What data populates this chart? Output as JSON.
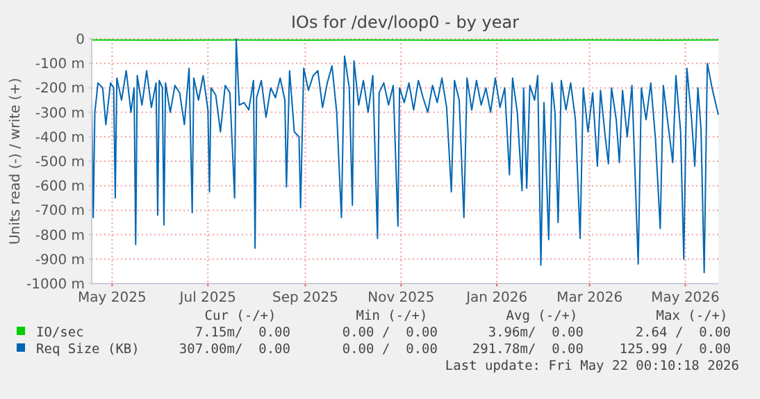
{
  "chart_data": {
    "type": "line",
    "title": "IOs for /dev/loop0 - by year",
    "ylabel": "Units read (-) / write (+)",
    "xlim": [
      "2025-04-18",
      "2026-05-22"
    ],
    "xticks": [
      {
        "value": "2025-05-01",
        "label": "May 2025"
      },
      {
        "value": "2025-07-01",
        "label": "Jul 2025"
      },
      {
        "value": "2025-09-01",
        "label": "Sep 2025"
      },
      {
        "value": "2025-11-01",
        "label": "Nov 2025"
      },
      {
        "value": "2026-01-01",
        "label": "Jan 2026"
      },
      {
        "value": "2026-03-01",
        "label": "Mar 2026"
      },
      {
        "value": "2026-05-01",
        "label": "May 2026"
      }
    ],
    "ylim": [
      -1000,
      0
    ],
    "yticks": [
      {
        "value": -1000,
        "label": "-1000 m"
      },
      {
        "value": -900,
        "label": "-900 m"
      },
      {
        "value": -800,
        "label": "-800 m"
      },
      {
        "value": -700,
        "label": "-700 m"
      },
      {
        "value": -600,
        "label": "-600 m"
      },
      {
        "value": -500,
        "label": "-500 m"
      },
      {
        "value": -400,
        "label": "-400 m"
      },
      {
        "value": -300,
        "label": "-300 m"
      },
      {
        "value": -200,
        "label": "-200 m"
      },
      {
        "value": -100,
        "label": "-100 m"
      },
      0
    ],
    "grid": true,
    "legend": "bottom",
    "series": [
      {
        "name": "IO/sec",
        "color": "#00cc00",
        "x": [
          "2025-04-18",
          "2025-06-01",
          "2025-07-15",
          "2025-09-01",
          "2025-10-15",
          "2025-12-01",
          "2026-01-15",
          "2026-03-01",
          "2026-04-15",
          "2026-05-22"
        ],
        "values": [
          -4,
          -5,
          -4,
          -5,
          -4,
          -5,
          -5,
          -4,
          -5,
          -4
        ]
      },
      {
        "name": "Req Size (KB)",
        "color": "#0066b3",
        "x": [
          "2025-04-18",
          "2025-04-19",
          "2025-04-20",
          "2025-04-22",
          "2025-04-25",
          "2025-04-27",
          "2025-04-30",
          "2025-05-02",
          "2025-05-03",
          "2025-05-04",
          "2025-05-07",
          "2025-05-10",
          "2025-05-13",
          "2025-05-15",
          "2025-05-16",
          "2025-05-17",
          "2025-05-20",
          "2025-05-23",
          "2025-05-26",
          "2025-05-29",
          "2025-05-30",
          "2025-05-31",
          "2025-06-02",
          "2025-06-03",
          "2025-06-04",
          "2025-06-07",
          "2025-06-10",
          "2025-06-13",
          "2025-06-16",
          "2025-06-19",
          "2025-06-21",
          "2025-06-22",
          "2025-06-25",
          "2025-06-28",
          "2025-07-01",
          "2025-07-02",
          "2025-07-03",
          "2025-07-06",
          "2025-07-09",
          "2025-07-12",
          "2025-07-15",
          "2025-07-18",
          "2025-07-19",
          "2025-07-21",
          "2025-07-24",
          "2025-07-27",
          "2025-07-30",
          "2025-07-31",
          "2025-08-01",
          "2025-08-04",
          "2025-08-07",
          "2025-08-10",
          "2025-08-13",
          "2025-08-16",
          "2025-08-19",
          "2025-08-20",
          "2025-08-22",
          "2025-08-25",
          "2025-08-28",
          "2025-08-29",
          "2025-08-31",
          "2025-09-03",
          "2025-09-06",
          "2025-09-09",
          "2025-09-12",
          "2025-09-15",
          "2025-09-18",
          "2025-09-21",
          "2025-09-24",
          "2025-09-26",
          "2025-09-29",
          "2025-10-01",
          "2025-10-02",
          "2025-10-05",
          "2025-10-08",
          "2025-10-11",
          "2025-10-14",
          "2025-10-17",
          "2025-10-18",
          "2025-10-21",
          "2025-10-24",
          "2025-10-27",
          "2025-10-30",
          "2025-10-31",
          "2025-11-03",
          "2025-11-06",
          "2025-11-09",
          "2025-11-12",
          "2025-11-15",
          "2025-11-18",
          "2025-11-21",
          "2025-11-24",
          "2025-11-27",
          "2025-11-30",
          "2025-12-03",
          "2025-12-05",
          "2025-12-08",
          "2025-12-11",
          "2025-12-13",
          "2025-12-16",
          "2025-12-19",
          "2025-12-22",
          "2025-12-25",
          "2025-12-28",
          "2025-12-31",
          "2026-01-03",
          "2026-01-06",
          "2026-01-09",
          "2026-01-11",
          "2026-01-14",
          "2026-01-17",
          "2026-01-18",
          "2026-01-20",
          "2026-01-22",
          "2026-01-25",
          "2026-01-27",
          "2026-01-29",
          "2026-01-31",
          "2026-02-03",
          "2026-02-05",
          "2026-02-07",
          "2026-02-09",
          "2026-02-11",
          "2026-02-14",
          "2026-02-17",
          "2026-02-20",
          "2026-02-23",
          "2026-02-25",
          "2026-02-28",
          "2026-03-03",
          "2026-03-06",
          "2026-03-08",
          "2026-03-11",
          "2026-03-13",
          "2026-03-15",
          "2026-03-18",
          "2026-03-20",
          "2026-03-22",
          "2026-03-25",
          "2026-03-28",
          "2026-04-01",
          "2026-04-03",
          "2026-04-06",
          "2026-04-09",
          "2026-04-12",
          "2026-04-15",
          "2026-04-17",
          "2026-04-20",
          "2026-04-23",
          "2026-04-25",
          "2026-04-28",
          "2026-04-30",
          "2026-05-02",
          "2026-05-05",
          "2026-05-07",
          "2026-05-09",
          "2026-05-11",
          "2026-05-13",
          "2026-05-15",
          "2026-05-18",
          "2026-05-22"
        ],
        "values": [
          -240,
          -730,
          -300,
          -180,
          -200,
          -350,
          -180,
          -200,
          -650,
          -160,
          -250,
          -130,
          -300,
          -200,
          -840,
          -150,
          -270,
          -130,
          -280,
          -180,
          -720,
          -170,
          -200,
          -760,
          -180,
          -300,
          -190,
          -220,
          -350,
          -120,
          -710,
          -160,
          -250,
          -150,
          -290,
          -625,
          -200,
          -230,
          -380,
          -190,
          -220,
          -650,
          0,
          -270,
          -260,
          -290,
          -170,
          -855,
          -240,
          -170,
          -320,
          -200,
          -240,
          -160,
          -250,
          -605,
          -130,
          -380,
          -400,
          -690,
          -120,
          -210,
          -150,
          -130,
          -280,
          -180,
          -110,
          -300,
          -730,
          -70,
          -200,
          -680,
          -90,
          -270,
          -170,
          -300,
          -150,
          -815,
          -220,
          -180,
          -270,
          -190,
          -765,
          -200,
          -260,
          -180,
          -290,
          -170,
          -240,
          -300,
          -190,
          -260,
          -160,
          -280,
          -625,
          -170,
          -250,
          -730,
          -160,
          -290,
          -170,
          -270,
          -200,
          -300,
          -160,
          -280,
          -200,
          -555,
          -160,
          -300,
          -620,
          -200,
          -610,
          -190,
          -250,
          -150,
          -925,
          -260,
          -820,
          -180,
          -300,
          -750,
          -170,
          -290,
          -180,
          -330,
          -815,
          -200,
          -380,
          -220,
          -520,
          -210,
          -400,
          -510,
          -200,
          -330,
          -505,
          -210,
          -400,
          -190,
          -920,
          -200,
          -330,
          -180,
          -410,
          -775,
          -190,
          -350,
          -505,
          -150,
          -380,
          -900,
          -120,
          -330,
          -520,
          -200,
          -370,
          -955,
          -100,
          -200,
          -310
        ]
      }
    ],
    "annotations": [
      "Cur (-/+)",
      "Min (-/+)",
      "Avg (-/+)",
      "Max (-/+)",
      "7.15m/  0.00",
      "0.00 /  0.00",
      "3.96m/  0.00",
      "2.64 /  0.00",
      "307.00m/  0.00",
      "0.00 /  0.00",
      "291.78m/  0.00",
      "125.99 /  0.00",
      "Last update: Fri May 22 00:10:18 2026"
    ]
  }
}
